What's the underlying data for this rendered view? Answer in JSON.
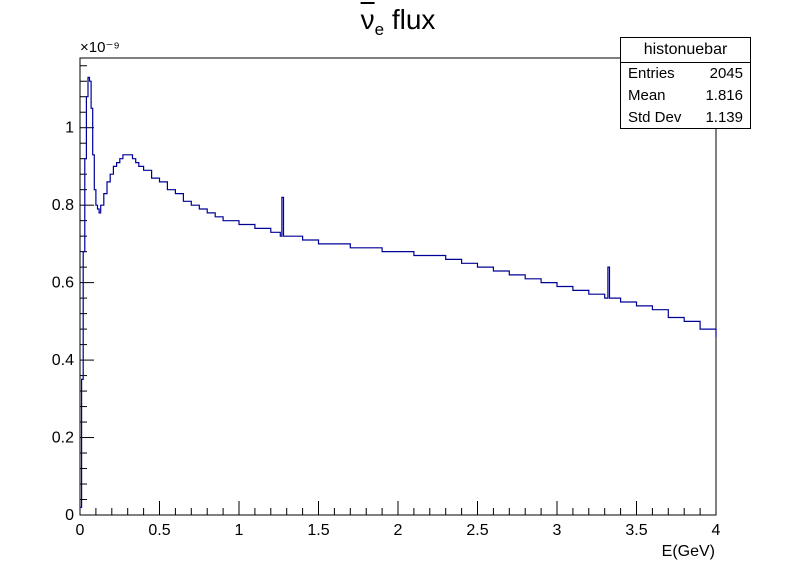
{
  "title": {
    "nu": "ν",
    "sub": "e",
    "text": " flux"
  },
  "stats": {
    "name": "histonuebar",
    "rows": [
      {
        "label": "Entries",
        "value": "2045"
      },
      {
        "label": "Mean",
        "value": "1.816"
      },
      {
        "label": "Std Dev",
        "value": "1.139"
      }
    ]
  },
  "chart_data": {
    "type": "line",
    "title": "ν̄e flux",
    "xlabel": "E(GeV)",
    "ylabel": "",
    "y_multiplier": "×10⁻⁹",
    "xlim": [
      0,
      4
    ],
    "ylim": [
      0,
      1.18
    ],
    "x_ticks": [
      "0",
      "0.5",
      "1",
      "1.5",
      "2",
      "2.5",
      "3",
      "3.5",
      "4"
    ],
    "y_ticks": [
      "0",
      "0.2",
      "0.4",
      "0.6",
      "0.8",
      "1"
    ],
    "series": [
      {
        "color": "#000099",
        "x": [
          0.0,
          0.01,
          0.02,
          0.03,
          0.04,
          0.05,
          0.06,
          0.07,
          0.08,
          0.09,
          0.1,
          0.11,
          0.12,
          0.13,
          0.15,
          0.17,
          0.19,
          0.21,
          0.23,
          0.25,
          0.27,
          0.29,
          0.31,
          0.33,
          0.35,
          0.37,
          0.4,
          0.45,
          0.5,
          0.55,
          0.6,
          0.65,
          0.7,
          0.75,
          0.8,
          0.85,
          0.9,
          0.95,
          1.0,
          1.1,
          1.2,
          1.26,
          1.27,
          1.28,
          1.3,
          1.4,
          1.5,
          1.6,
          1.7,
          1.8,
          1.9,
          2.0,
          2.1,
          2.2,
          2.3,
          2.4,
          2.5,
          2.6,
          2.7,
          2.8,
          2.9,
          3.0,
          3.1,
          3.2,
          3.3,
          3.32,
          3.33,
          3.34,
          3.4,
          3.5,
          3.6,
          3.7,
          3.8,
          3.9,
          4.0
        ],
        "values": [
          0.02,
          0.35,
          0.68,
          0.92,
          1.08,
          1.13,
          1.12,
          1.05,
          0.93,
          0.84,
          0.8,
          0.79,
          0.78,
          0.8,
          0.83,
          0.86,
          0.88,
          0.9,
          0.91,
          0.92,
          0.93,
          0.93,
          0.93,
          0.92,
          0.91,
          0.9,
          0.89,
          0.87,
          0.86,
          0.84,
          0.83,
          0.81,
          0.8,
          0.79,
          0.78,
          0.77,
          0.76,
          0.76,
          0.75,
          0.74,
          0.73,
          0.72,
          0.82,
          0.72,
          0.72,
          0.71,
          0.7,
          0.7,
          0.69,
          0.69,
          0.68,
          0.68,
          0.67,
          0.67,
          0.66,
          0.65,
          0.64,
          0.63,
          0.62,
          0.61,
          0.6,
          0.59,
          0.58,
          0.57,
          0.56,
          0.64,
          0.56,
          0.56,
          0.55,
          0.54,
          0.53,
          0.51,
          0.5,
          0.48,
          0.46
        ]
      }
    ],
    "grid": false,
    "legend": "stats box top-right"
  }
}
